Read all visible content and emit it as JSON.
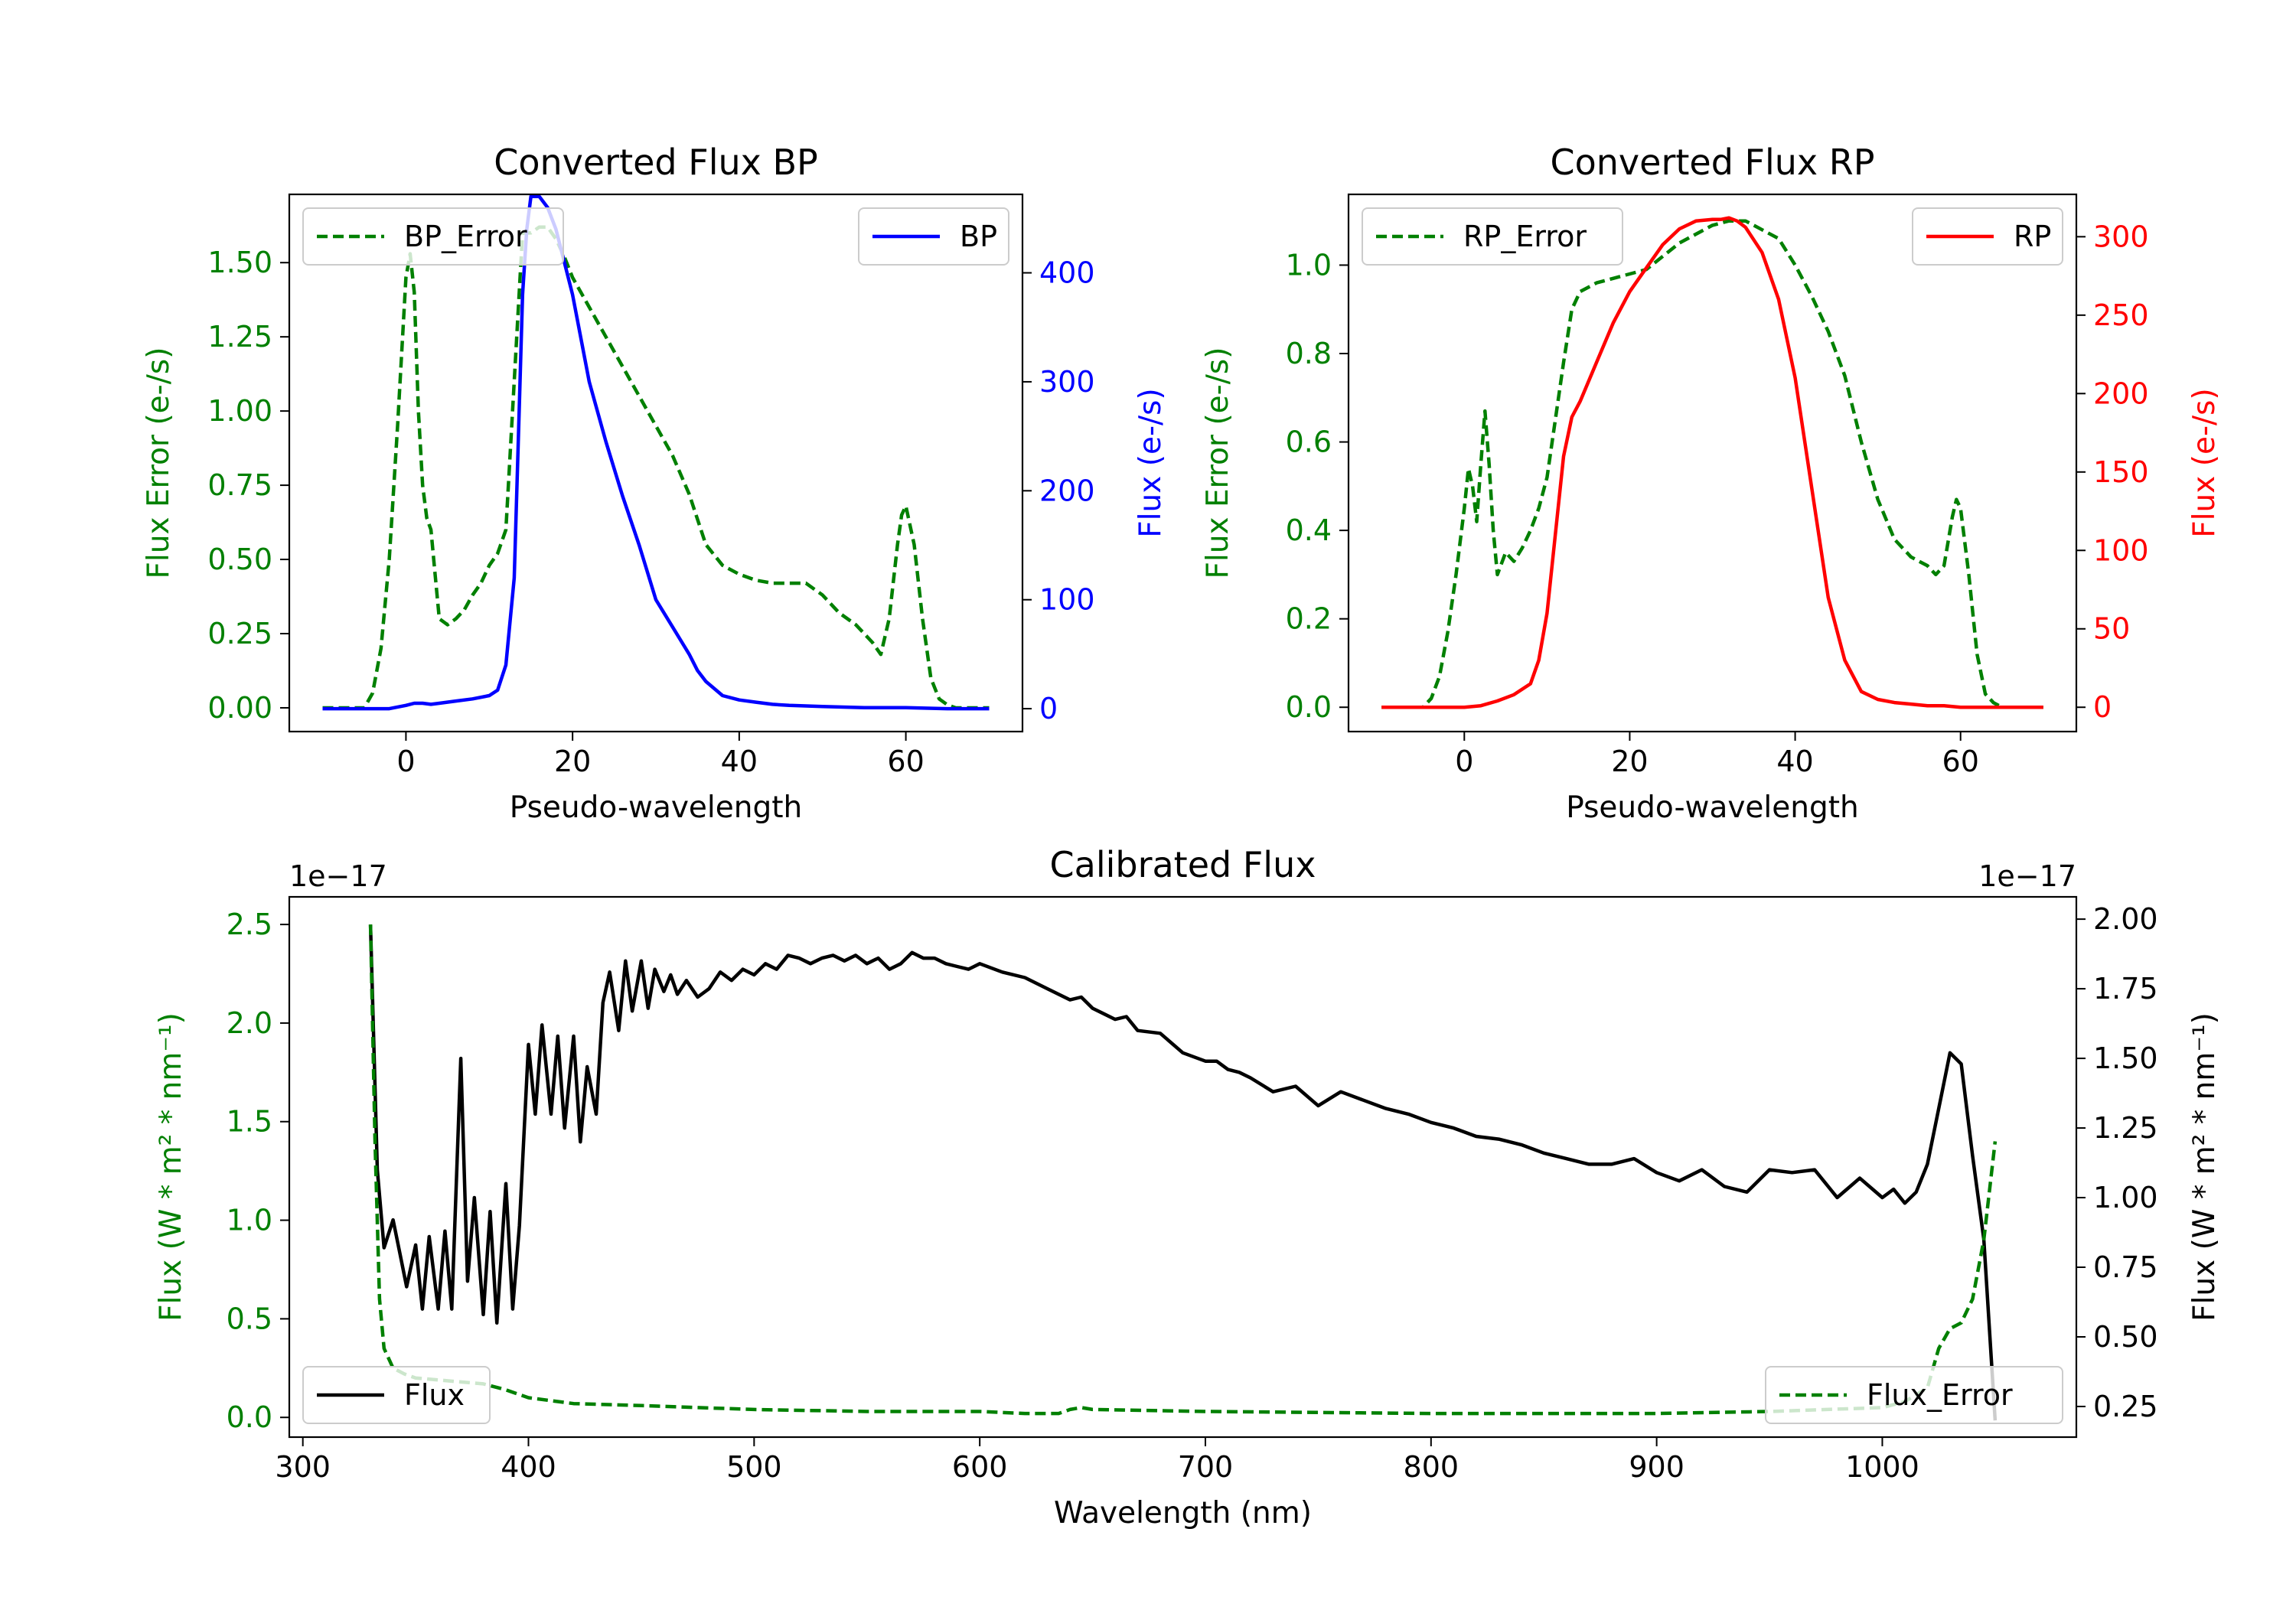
{
  "chart_data": [
    {
      "type": "line",
      "title": "Converted Flux BP",
      "xlabel": "Pseudo-wavelength",
      "xlim": [
        -14,
        74
      ],
      "xticks": [
        0,
        20,
        40,
        60
      ],
      "y_left": {
        "label": "Flux Error (e-/s)",
        "color": "#008000",
        "lim": [
          -0.08,
          1.73
        ],
        "ticks": [
          "0.00",
          "0.25",
          "0.50",
          "0.75",
          "1.00",
          "1.25",
          "1.50"
        ],
        "tick_values": [
          0,
          0.25,
          0.5,
          0.75,
          1.0,
          1.25,
          1.5
        ]
      },
      "y_right": {
        "label": "Flux (e-/s)",
        "color": "#0000ff",
        "lim": [
          -21,
          472
        ],
        "ticks": [
          "0",
          "100",
          "200",
          "300",
          "400"
        ],
        "tick_values": [
          0,
          100,
          200,
          300,
          400
        ]
      },
      "series": [
        {
          "name": "BP_Error",
          "axis": "left",
          "style": "dashed",
          "color": "#008000",
          "x": [
            -10,
            -6,
            -5,
            -4,
            -3,
            -2,
            -1,
            0,
            0.5,
            1,
            1.5,
            2,
            2.5,
            3,
            3.5,
            4,
            5,
            6,
            7,
            8,
            9,
            10,
            11,
            12,
            13,
            14,
            15,
            16,
            17,
            18,
            19,
            20,
            22,
            24,
            26,
            28,
            30,
            32,
            34,
            36,
            38,
            40,
            42,
            44,
            46,
            48,
            50,
            52,
            54,
            55,
            56,
            57,
            58,
            59,
            59.5,
            60,
            61,
            62,
            63,
            64,
            65,
            66,
            70
          ],
          "y": [
            0,
            0,
            0,
            0.05,
            0.2,
            0.5,
            0.95,
            1.45,
            1.53,
            1.4,
            1.0,
            0.75,
            0.64,
            0.6,
            0.45,
            0.3,
            0.28,
            0.3,
            0.33,
            0.38,
            0.42,
            0.48,
            0.52,
            0.6,
            1.1,
            1.6,
            1.6,
            1.62,
            1.62,
            1.58,
            1.52,
            1.45,
            1.35,
            1.25,
            1.15,
            1.05,
            0.95,
            0.85,
            0.72,
            0.55,
            0.48,
            0.45,
            0.43,
            0.42,
            0.42,
            0.42,
            0.38,
            0.32,
            0.28,
            0.25,
            0.22,
            0.18,
            0.3,
            0.55,
            0.65,
            0.68,
            0.55,
            0.3,
            0.1,
            0.03,
            0.01,
            0,
            0
          ]
        },
        {
          "name": "BP",
          "axis": "right",
          "style": "solid",
          "color": "#0000ff",
          "x": [
            -10,
            -2,
            0,
            1,
            2,
            3,
            4,
            6,
            8,
            10,
            11,
            12,
            13,
            13.5,
            14,
            14.5,
            15,
            16,
            17,
            18,
            19,
            20,
            22,
            24,
            26,
            28,
            30,
            32,
            34,
            35,
            36,
            38,
            40,
            42,
            44,
            46,
            50,
            55,
            60,
            65,
            70
          ],
          "y": [
            0,
            0,
            3,
            5,
            5,
            4,
            5,
            7,
            9,
            12,
            17,
            40,
            120,
            250,
            380,
            440,
            470,
            470,
            460,
            440,
            410,
            380,
            300,
            245,
            195,
            150,
            100,
            75,
            50,
            35,
            25,
            12,
            8,
            6,
            4,
            3,
            2,
            1,
            1,
            0,
            0
          ]
        }
      ],
      "legend": [
        {
          "label": "BP_Error",
          "position": "upper-left"
        },
        {
          "label": "BP",
          "position": "upper-right"
        }
      ]
    },
    {
      "type": "line",
      "title": "Converted Flux RP",
      "xlabel": "Pseudo-wavelength",
      "xlim": [
        -14,
        74
      ],
      "xticks": [
        0,
        20,
        40,
        60
      ],
      "y_left": {
        "label": "Flux Error (e-/s)",
        "color": "#008000",
        "lim": [
          -0.055,
          1.16
        ],
        "ticks": [
          "0.0",
          "0.2",
          "0.4",
          "0.6",
          "0.8",
          "1.0"
        ],
        "tick_values": [
          0,
          0.2,
          0.4,
          0.6,
          0.8,
          1.0
        ]
      },
      "y_right": {
        "label": "Flux (e-/s)",
        "color": "#ff0000",
        "lim": [
          -15.5,
          327
        ],
        "ticks": [
          "0",
          "50",
          "100",
          "150",
          "200",
          "250",
          "300"
        ],
        "tick_values": [
          0,
          50,
          100,
          150,
          200,
          250,
          300
        ]
      },
      "series": [
        {
          "name": "RP_Error",
          "axis": "left",
          "style": "dashed",
          "color": "#008000",
          "x": [
            -10,
            -6,
            -5,
            -4,
            -3,
            -2,
            -1,
            0,
            0.5,
            1,
            1.5,
            2,
            2.5,
            3,
            3.5,
            4,
            5,
            6,
            7,
            8,
            9,
            10,
            11,
            12,
            13,
            14,
            16,
            18,
            20,
            22,
            24,
            26,
            28,
            30,
            32,
            34,
            36,
            38,
            40,
            42,
            44,
            46,
            48,
            50,
            52,
            54,
            55,
            56,
            57,
            58,
            59,
            59.5,
            60,
            61,
            62,
            63,
            64,
            65,
            70
          ],
          "y": [
            0,
            0,
            0,
            0.02,
            0.07,
            0.17,
            0.3,
            0.45,
            0.54,
            0.5,
            0.42,
            0.55,
            0.67,
            0.55,
            0.4,
            0.3,
            0.35,
            0.33,
            0.36,
            0.4,
            0.45,
            0.52,
            0.65,
            0.78,
            0.9,
            0.94,
            0.96,
            0.97,
            0.98,
            0.99,
            1.02,
            1.05,
            1.07,
            1.09,
            1.1,
            1.1,
            1.08,
            1.06,
            1.0,
            0.93,
            0.85,
            0.75,
            0.6,
            0.47,
            0.38,
            0.34,
            0.33,
            0.32,
            0.3,
            0.32,
            0.43,
            0.47,
            0.45,
            0.3,
            0.12,
            0.03,
            0.01,
            0,
            0
          ]
        },
        {
          "name": "RP",
          "axis": "right",
          "style": "solid",
          "color": "#ff0000",
          "x": [
            -10,
            -2,
            0,
            2,
            4,
            6,
            8,
            9,
            10,
            11,
            12,
            13,
            14,
            16,
            18,
            20,
            22,
            24,
            26,
            28,
            30,
            31,
            32,
            33,
            34,
            36,
            38,
            40,
            42,
            44,
            46,
            48,
            50,
            52,
            54,
            56,
            58,
            60,
            62,
            70
          ],
          "y": [
            0,
            0,
            0,
            1,
            4,
            8,
            15,
            30,
            60,
            110,
            160,
            185,
            195,
            220,
            245,
            265,
            280,
            295,
            305,
            310,
            311,
            311,
            312,
            310,
            306,
            290,
            260,
            210,
            140,
            70,
            30,
            10,
            5,
            3,
            2,
            1,
            1,
            0,
            0,
            0
          ]
        }
      ],
      "legend": [
        {
          "label": "RP_Error",
          "position": "upper-left"
        },
        {
          "label": "RP",
          "position": "upper-right"
        }
      ]
    },
    {
      "type": "line",
      "title": "Calibrated Flux",
      "xlabel": "Wavelength (nm)",
      "xlim": [
        294,
        1086
      ],
      "xticks": [
        300,
        400,
        500,
        600,
        700,
        800,
        900,
        1000
      ],
      "y_left": {
        "label": "Flux (W * m² * nm⁻¹)",
        "offset_text": "1e−17",
        "color": "#008000",
        "lim": [
          -0.1,
          2.64
        ],
        "ticks": [
          "0.0",
          "0.5",
          "1.0",
          "1.5",
          "2.0",
          "2.5"
        ],
        "tick_values": [
          0,
          0.5,
          1.0,
          1.5,
          2.0,
          2.5
        ]
      },
      "y_right": {
        "label": "Flux (W * m² * nm⁻¹)",
        "offset_text": "1e−17",
        "color": "#000000",
        "lim": [
          0.14,
          2.08
        ],
        "ticks": [
          "0.25",
          "0.50",
          "0.75",
          "1.00",
          "1.25",
          "1.50",
          "1.75",
          "2.00"
        ],
        "tick_values": [
          0.25,
          0.5,
          0.75,
          1.0,
          1.25,
          1.5,
          1.75,
          2.0
        ]
      },
      "series": [
        {
          "name": "Flux",
          "axis": "right",
          "style": "solid",
          "color": "#000000",
          "x": [
            330,
            333,
            336,
            340,
            343,
            346,
            350,
            353,
            356,
            360,
            363,
            366,
            370,
            373,
            376,
            380,
            383,
            386,
            390,
            393,
            396,
            400,
            403,
            406,
            410,
            413,
            416,
            420,
            423,
            426,
            430,
            433,
            436,
            440,
            443,
            446,
            450,
            453,
            456,
            460,
            463,
            466,
            470,
            475,
            480,
            485,
            490,
            495,
            500,
            505,
            510,
            515,
            520,
            525,
            530,
            535,
            540,
            545,
            550,
            555,
            560,
            565,
            570,
            575,
            580,
            585,
            590,
            595,
            600,
            610,
            620,
            630,
            640,
            645,
            650,
            655,
            660,
            665,
            670,
            680,
            690,
            700,
            705,
            710,
            715,
            720,
            730,
            740,
            750,
            760,
            770,
            780,
            790,
            800,
            810,
            820,
            830,
            840,
            850,
            860,
            870,
            880,
            890,
            900,
            910,
            920,
            930,
            940,
            950,
            960,
            970,
            980,
            990,
            1000,
            1005,
            1010,
            1015,
            1020,
            1025,
            1030,
            1035,
            1040,
            1045,
            1050
          ],
          "y": [
            1.98,
            1.1,
            0.82,
            0.92,
            0.8,
            0.68,
            0.83,
            0.6,
            0.86,
            0.6,
            0.88,
            0.6,
            1.5,
            0.7,
            1.0,
            0.58,
            0.95,
            0.55,
            1.05,
            0.6,
            0.9,
            1.55,
            1.3,
            1.62,
            1.3,
            1.58,
            1.25,
            1.58,
            1.2,
            1.47,
            1.3,
            1.7,
            1.81,
            1.6,
            1.85,
            1.67,
            1.85,
            1.68,
            1.82,
            1.74,
            1.8,
            1.73,
            1.78,
            1.72,
            1.75,
            1.81,
            1.78,
            1.82,
            1.8,
            1.84,
            1.82,
            1.87,
            1.86,
            1.84,
            1.86,
            1.87,
            1.85,
            1.87,
            1.84,
            1.86,
            1.82,
            1.84,
            1.88,
            1.86,
            1.86,
            1.84,
            1.83,
            1.82,
            1.84,
            1.81,
            1.79,
            1.75,
            1.71,
            1.72,
            1.68,
            1.66,
            1.64,
            1.65,
            1.6,
            1.59,
            1.52,
            1.49,
            1.49,
            1.46,
            1.45,
            1.43,
            1.38,
            1.4,
            1.33,
            1.38,
            1.35,
            1.32,
            1.3,
            1.27,
            1.25,
            1.22,
            1.21,
            1.19,
            1.16,
            1.14,
            1.12,
            1.12,
            1.14,
            1.09,
            1.06,
            1.1,
            1.04,
            1.02,
            1.1,
            1.09,
            1.1,
            1.0,
            1.07,
            1.0,
            1.03,
            0.98,
            1.02,
            1.12,
            1.32,
            1.52,
            1.48,
            1.15,
            0.85,
            0.2
          ]
        },
        {
          "name": "Flux_Error",
          "axis": "left",
          "style": "dashed",
          "color": "#008000",
          "x": [
            330,
            332,
            334,
            336,
            340,
            345,
            350,
            360,
            370,
            380,
            390,
            400,
            420,
            450,
            500,
            550,
            600,
            620,
            635,
            640,
            645,
            650,
            700,
            800,
            900,
            950,
            1000,
            1010,
            1020,
            1025,
            1030,
            1035,
            1040,
            1045,
            1050
          ],
          "y": [
            2.5,
            1.4,
            0.6,
            0.35,
            0.25,
            0.22,
            0.2,
            0.19,
            0.18,
            0.17,
            0.14,
            0.1,
            0.07,
            0.06,
            0.04,
            0.03,
            0.03,
            0.02,
            0.02,
            0.04,
            0.05,
            0.04,
            0.03,
            0.02,
            0.02,
            0.03,
            0.05,
            0.08,
            0.15,
            0.35,
            0.45,
            0.48,
            0.6,
            0.9,
            1.4
          ]
        }
      ],
      "legend": [
        {
          "label": "Flux",
          "position": "lower-left"
        },
        {
          "label": "Flux_Error",
          "position": "lower-right"
        }
      ]
    }
  ]
}
